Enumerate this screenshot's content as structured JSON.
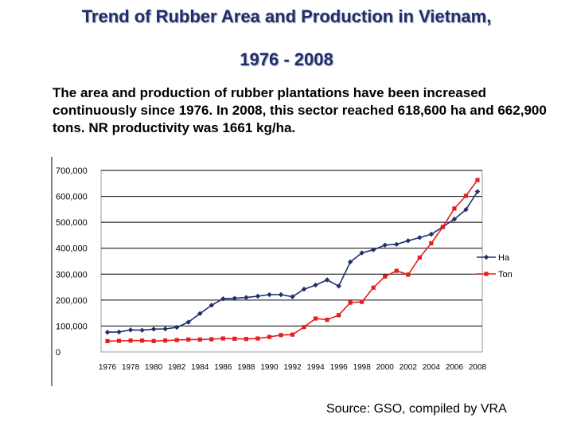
{
  "title_line1": "Trend of Rubber Area and Production in Vietnam,",
  "title_line2": "1976 - 2008",
  "description": "The area and production of rubber plantations have been increased continuously since 1976. In 2008, this sector reached 618,600 ha and 662,900 tons. NR productivity was 1661 kg/ha.",
  "source": "Source: GSO, compiled by VRA",
  "chart_data": {
    "type": "line",
    "title": "",
    "xlabel": "",
    "ylabel": "",
    "ylim": [
      0,
      700000
    ],
    "y_ticks": [
      0,
      100000,
      200000,
      300000,
      400000,
      500000,
      600000,
      700000
    ],
    "y_tick_labels": [
      "0",
      "100,000",
      "200,000",
      "300,000",
      "400,000",
      "500,000",
      "600,000",
      "700,000"
    ],
    "x_tick_labels": [
      "1976",
      "1978",
      "1980",
      "1982",
      "1984",
      "1986",
      "1988",
      "1990",
      "1992",
      "1994",
      "1996",
      "1998",
      "2000",
      "2002",
      "2004",
      "2006",
      "2008"
    ],
    "grid": true,
    "legend_position": "right",
    "x": [
      1976,
      1977,
      1978,
      1979,
      1980,
      1981,
      1982,
      1983,
      1984,
      1985,
      1986,
      1987,
      1988,
      1989,
      1990,
      1991,
      1992,
      1993,
      1994,
      1995,
      1996,
      1997,
      1998,
      1999,
      2000,
      2001,
      2002,
      2003,
      2004,
      2005,
      2006,
      2007,
      2008
    ],
    "series": [
      {
        "name": "Ha",
        "color": "#1F2F6B",
        "marker": "diamond",
        "values": [
          76000,
          77000,
          85000,
          84000,
          88000,
          89000,
          95000,
          115000,
          148000,
          180000,
          205000,
          207000,
          210000,
          215000,
          221000,
          221000,
          213000,
          242000,
          258000,
          278000,
          254000,
          347000,
          382000,
          394000,
          412000,
          415000,
          429000,
          441000,
          454000,
          482000,
          512000,
          549000,
          618600
        ]
      },
      {
        "name": "Ton",
        "color": "#E41E1E",
        "marker": "square",
        "values": [
          42000,
          43000,
          44000,
          44000,
          42000,
          44000,
          46000,
          48000,
          48000,
          49000,
          52000,
          51000,
          50000,
          52000,
          58000,
          65000,
          67000,
          96000,
          129000,
          124000,
          142000,
          190000,
          193000,
          248000,
          291000,
          313000,
          298000,
          364000,
          419000,
          482000,
          553000,
          602000,
          662900
        ]
      }
    ]
  }
}
